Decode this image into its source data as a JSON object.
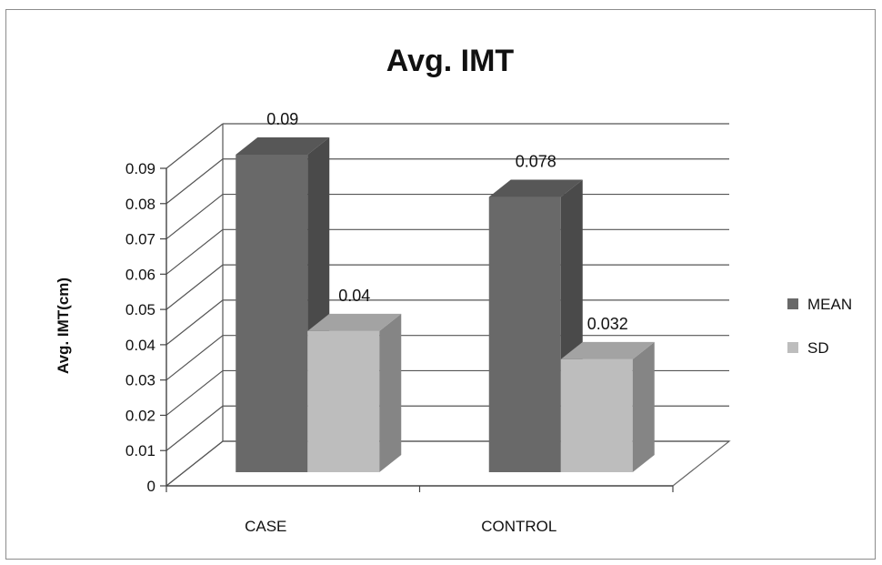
{
  "chart_data": {
    "type": "bar",
    "title": "Avg. IMT",
    "ylabel": "Avg. IMT(cm)",
    "xlabel": "",
    "categories": [
      "CASE",
      "CONTROL"
    ],
    "series": [
      {
        "name": "MEAN",
        "values": [
          0.09,
          0.078
        ],
        "labels": [
          "0.09",
          "0.078"
        ],
        "color": "#696969",
        "side_color": "#4a4a4a",
        "top_color": "#575757"
      },
      {
        "name": "SD",
        "values": [
          0.04,
          0.032
        ],
        "labels": [
          "0.04",
          "0.032"
        ],
        "color": "#bdbdbd",
        "side_color": "#858585",
        "top_color": "#a3a3a3"
      }
    ],
    "ylim": [
      0,
      0.09
    ],
    "yticks": [
      "0",
      "0.01",
      "0.02",
      "0.03",
      "0.04",
      "0.05",
      "0.06",
      "0.07",
      "0.08",
      "0.09"
    ],
    "grid": true,
    "legend": "right",
    "style": "3d-clustered-column"
  }
}
